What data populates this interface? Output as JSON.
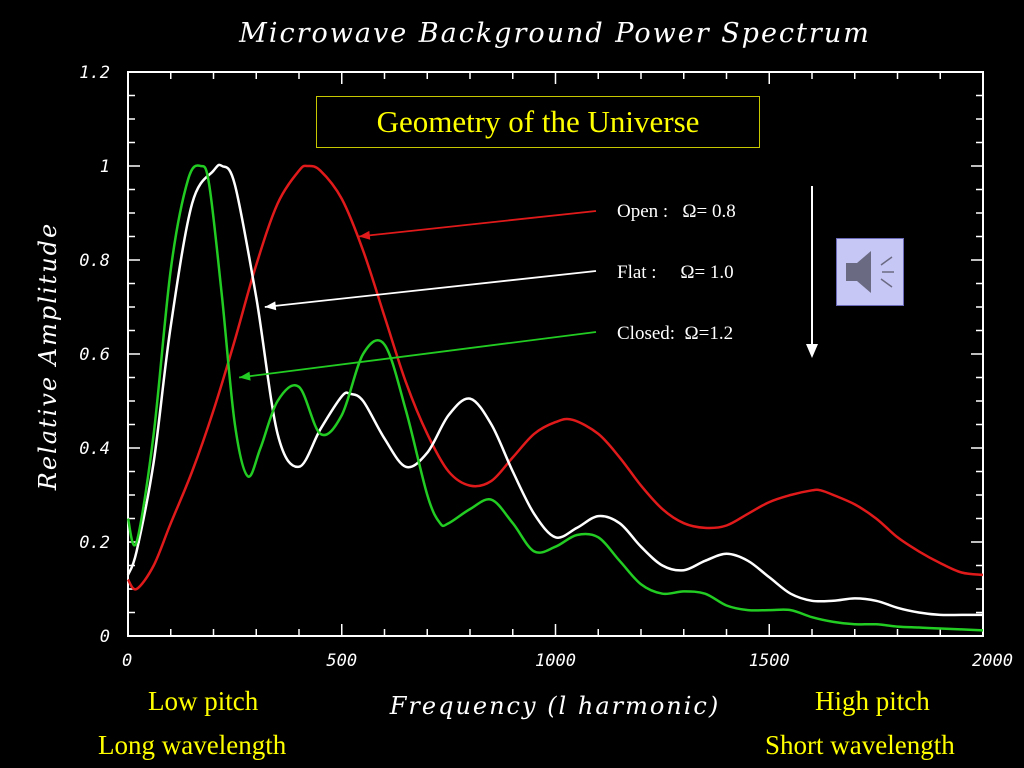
{
  "chart_data": {
    "type": "line",
    "title": "Microwave Background Power Spectrum",
    "xlabel": "Frequency (l harmonic)",
    "ylabel": "Relative Amplitude",
    "xlim": [
      0,
      2000
    ],
    "ylim": [
      0,
      1.2
    ],
    "x_ticks": [
      {
        "value": 0,
        "label": "0"
      },
      {
        "value": 500,
        "label": "500"
      },
      {
        "value": 1000,
        "label": "1000"
      },
      {
        "value": 1500,
        "label": "1500"
      },
      {
        "value": 2000,
        "label": "2000"
      }
    ],
    "y_ticks": [
      {
        "value": 0,
        "label": "0"
      },
      {
        "value": 0.2,
        "label": "0.2"
      },
      {
        "value": 0.4,
        "label": "0.4"
      },
      {
        "value": 0.6,
        "label": "0.6"
      },
      {
        "value": 0.8,
        "label": "0.8"
      },
      {
        "value": 1.0,
        "label": "1"
      },
      {
        "value": 1.2,
        "label": "1.2"
      }
    ],
    "grid": false,
    "series": [
      {
        "name": "Open :   Ω= 0.8",
        "color": "#e01a1a",
        "arrow_to": [
          540,
          0.85
        ],
        "x": [
          0,
          20,
          60,
          100,
          150,
          200,
          250,
          300,
          350,
          400,
          420,
          450,
          500,
          550,
          600,
          650,
          700,
          750,
          800,
          850,
          900,
          950,
          1000,
          1040,
          1100,
          1150,
          1200,
          1250,
          1300,
          1350,
          1400,
          1450,
          1500,
          1550,
          1600,
          1620,
          1650,
          1700,
          1750,
          1800,
          1850,
          1900,
          1950,
          2000
        ],
        "y": [
          0.12,
          0.1,
          0.15,
          0.24,
          0.35,
          0.48,
          0.63,
          0.79,
          0.92,
          0.99,
          1.0,
          0.99,
          0.93,
          0.82,
          0.68,
          0.54,
          0.43,
          0.35,
          0.32,
          0.33,
          0.38,
          0.43,
          0.455,
          0.46,
          0.43,
          0.38,
          0.32,
          0.27,
          0.24,
          0.23,
          0.235,
          0.26,
          0.285,
          0.3,
          0.31,
          0.31,
          0.3,
          0.28,
          0.25,
          0.21,
          0.18,
          0.155,
          0.135,
          0.13
        ]
      },
      {
        "name": "Flat :     Ω= 1.0",
        "color": "#ffffff",
        "arrow_to": [
          320,
          0.7
        ],
        "x": [
          0,
          20,
          60,
          100,
          150,
          200,
          220,
          250,
          300,
          350,
          400,
          450,
          500,
          520,
          550,
          600,
          650,
          700,
          750,
          800,
          850,
          900,
          950,
          1000,
          1050,
          1100,
          1150,
          1200,
          1250,
          1300,
          1350,
          1400,
          1450,
          1500,
          1550,
          1600,
          1650,
          1700,
          1750,
          1800,
          1850,
          1900,
          1950,
          2000
        ],
        "y": [
          0.13,
          0.18,
          0.37,
          0.66,
          0.92,
          0.99,
          1.0,
          0.96,
          0.72,
          0.43,
          0.36,
          0.44,
          0.51,
          0.515,
          0.5,
          0.42,
          0.36,
          0.39,
          0.47,
          0.505,
          0.45,
          0.35,
          0.26,
          0.21,
          0.23,
          0.255,
          0.24,
          0.19,
          0.15,
          0.14,
          0.16,
          0.175,
          0.16,
          0.125,
          0.09,
          0.075,
          0.075,
          0.08,
          0.075,
          0.06,
          0.05,
          0.045,
          0.045,
          0.045
        ]
      },
      {
        "name": "Closed:  Ω=1.2",
        "color": "#22cc22",
        "arrow_to": [
          260,
          0.55
        ],
        "x": [
          0,
          20,
          60,
          100,
          140,
          170,
          190,
          220,
          250,
          280,
          310,
          350,
          400,
          450,
          500,
          550,
          600,
          650,
          700,
          730,
          750,
          800,
          850,
          900,
          950,
          1000,
          1050,
          1100,
          1150,
          1200,
          1250,
          1300,
          1350,
          1400,
          1450,
          1500,
          1550,
          1600,
          1650,
          1700,
          1750,
          1800,
          1850,
          1900,
          1950,
          2000
        ],
        "y": [
          0.25,
          0.2,
          0.43,
          0.78,
          0.97,
          1.0,
          0.96,
          0.72,
          0.45,
          0.34,
          0.4,
          0.5,
          0.53,
          0.43,
          0.47,
          0.6,
          0.62,
          0.48,
          0.3,
          0.24,
          0.24,
          0.27,
          0.29,
          0.24,
          0.18,
          0.19,
          0.215,
          0.21,
          0.16,
          0.11,
          0.09,
          0.095,
          0.09,
          0.065,
          0.055,
          0.055,
          0.055,
          0.04,
          0.03,
          0.025,
          0.025,
          0.02,
          0.018,
          0.016,
          0.014,
          0.012
        ]
      }
    ]
  },
  "legend": {
    "entries": [
      {
        "label": "Open :   Ω= 0.8"
      },
      {
        "label": "Flat :     Ω= 1.0"
      },
      {
        "label": "Closed:  Ω=1.2"
      }
    ]
  },
  "annotation": {
    "text": "Geometry of the Universe",
    "color": "#ffff00"
  },
  "labels": {
    "low_pitch": "Low pitch",
    "long_wavelength": "Long wavelength",
    "high_pitch": "High pitch",
    "short_wavelength": "Short wavelength",
    "color": "#ffff00"
  },
  "speaker": {
    "icon": "speaker-icon"
  }
}
